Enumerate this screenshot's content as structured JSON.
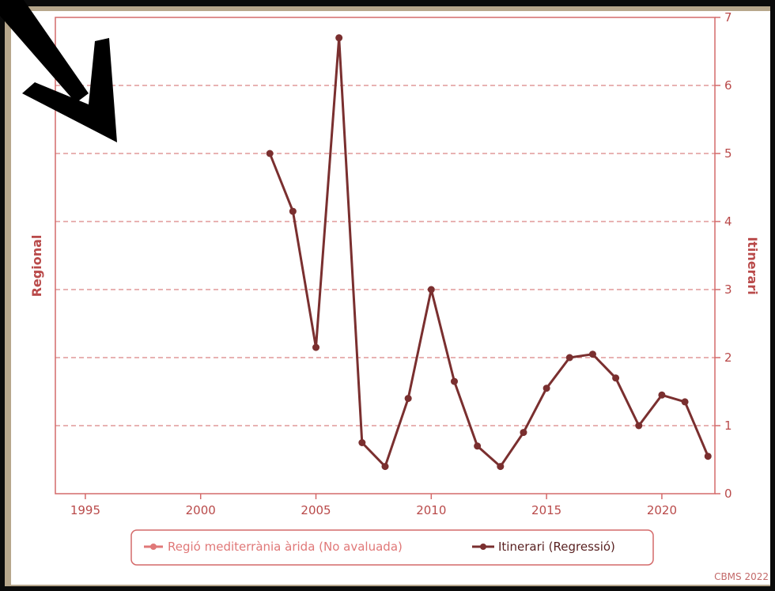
{
  "chart_data": {
    "type": "line",
    "left_axis_label": "Regional",
    "right_axis_label": "Itinerari",
    "x_ticks": [
      1995,
      2000,
      2005,
      2010,
      2015,
      2020
    ],
    "xlim": [
      1993.7,
      2022.3
    ],
    "y_right_ticks": [
      0,
      1,
      2,
      3,
      4,
      5,
      6,
      7
    ],
    "ylim": [
      0,
      7
    ],
    "grid": "horizontal dashed",
    "legend_position": "bottom-center",
    "series": [
      {
        "name": "Regió mediterrània àrida (No avaluada)",
        "color": "#e07878",
        "x": [],
        "y": []
      },
      {
        "name": "Itinerari (Regressió)",
        "color": "#7a2f2f",
        "x": [
          2003,
          2004,
          2005,
          2006,
          2007,
          2008,
          2009,
          2010,
          2011,
          2012,
          2013,
          2014,
          2015,
          2016,
          2017,
          2018,
          2019,
          2020,
          2021,
          2022
        ],
        "y": [
          5.0,
          4.15,
          2.15,
          6.7,
          0.75,
          0.4,
          1.4,
          3.0,
          1.65,
          0.7,
          0.4,
          0.9,
          1.55,
          2.0,
          2.05,
          1.7,
          1.0,
          1.45,
          1.35,
          0.55
        ]
      }
    ],
    "credit": "CBMS 2022"
  },
  "colors": {
    "axis": "#d46a6a",
    "grid": "#d98585",
    "tick_text": "#b94a4a",
    "series_line": "#7a2f2f",
    "frame_background": "#b7a78c",
    "arrow": "#000000"
  },
  "decoration": {
    "arrow_icon": "down-right-arrow"
  }
}
